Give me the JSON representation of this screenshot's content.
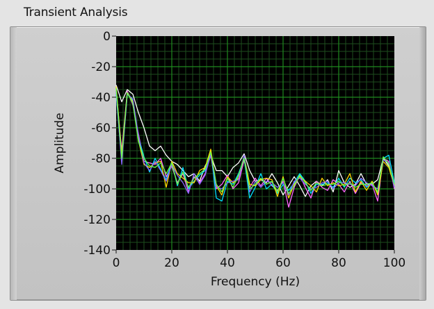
{
  "window": {
    "title": "Transient Analysis"
  },
  "chart_data": {
    "type": "line",
    "title": "Transient Analysis",
    "xlabel": "Frequency (Hz)",
    "ylabel": "Amplitude",
    "xlim": [
      0,
      100
    ],
    "ylim": [
      -140,
      0
    ],
    "x_ticks": [
      0,
      20,
      40,
      60,
      80,
      100
    ],
    "y_ticks": [
      0,
      -20,
      -40,
      -60,
      -80,
      -100,
      -120,
      -140
    ],
    "grid": true,
    "legend": "none",
    "background_color": "#000000",
    "major_grid_color": "#1f8a1f",
    "minor_grid_color": "#1e4e1e",
    "x": [
      0,
      2,
      4,
      6,
      8,
      10,
      12,
      14,
      16,
      18,
      20,
      22,
      24,
      26,
      28,
      30,
      32,
      34,
      36,
      38,
      40,
      42,
      44,
      46,
      48,
      50,
      52,
      54,
      56,
      58,
      60,
      62,
      64,
      66,
      68,
      70,
      72,
      74,
      76,
      78,
      80,
      82,
      84,
      86,
      88,
      90,
      92,
      94,
      96,
      98,
      100
    ],
    "series": [
      {
        "color": "#ffffff",
        "values": [
          -32,
          -43,
          -35,
          -38,
          -50,
          -60,
          -72,
          -75,
          -72,
          -78,
          -82,
          -84,
          -88,
          -92,
          -90,
          -95,
          -85,
          -78,
          -88,
          -88,
          -92,
          -86,
          -83,
          -77,
          -88,
          -95,
          -94,
          -96,
          -90,
          -96,
          -104,
          -98,
          -92,
          -98,
          -105,
          -98,
          -95,
          -98,
          -94,
          -102,
          -88,
          -96,
          -99,
          -97,
          -90,
          -97,
          -97,
          -94,
          -80,
          -85,
          -98
        ]
      },
      {
        "color": "#ff66ff",
        "values": [
          -35,
          -75,
          -36,
          -45,
          -64,
          -82,
          -83,
          -84,
          -80,
          -92,
          -85,
          -96,
          -90,
          -102,
          -92,
          -96,
          -90,
          -78,
          -100,
          -97,
          -91,
          -100,
          -96,
          -81,
          -99,
          -93,
          -98,
          -93,
          -98,
          -101,
          -95,
          -112,
          -99,
          -91,
          -99,
          -106,
          -95,
          -99,
          -101,
          -94,
          -97,
          -102,
          -95,
          -103,
          -96,
          -98,
          -97,
          -108,
          -80,
          -82,
          -100
        ]
      },
      {
        "color": "#00e0ff",
        "values": [
          -38,
          -82,
          -38,
          -42,
          -66,
          -79,
          -89,
          -80,
          -87,
          -94,
          -82,
          -98,
          -86,
          -100,
          -95,
          -91,
          -88,
          -75,
          -106,
          -108,
          -95,
          -97,
          -90,
          -80,
          -106,
          -99,
          -90,
          -100,
          -97,
          -103,
          -97,
          -101,
          -96,
          -90,
          -95,
          -103,
          -97,
          -97,
          -96,
          -99,
          -93,
          -99,
          -93,
          -96,
          -94,
          -99,
          -96,
          -103,
          -80,
          -78,
          -96
        ]
      },
      {
        "color": "#ffd700",
        "values": [
          -33,
          -78,
          -37,
          -43,
          -68,
          -84,
          -86,
          -83,
          -82,
          -99,
          -82,
          -90,
          -93,
          -96,
          -96,
          -88,
          -86,
          -74,
          -98,
          -104,
          -92,
          -96,
          -93,
          -79,
          -97,
          -98,
          -94,
          -93,
          -94,
          -105,
          -92,
          -106,
          -97,
          -92,
          -95,
          -98,
          -102,
          -93,
          -98,
          -96,
          -98,
          -97,
          -90,
          -102,
          -95,
          -101,
          -95,
          -104,
          -82,
          -86,
          -98
        ]
      },
      {
        "color": "#8866ff",
        "values": [
          -36,
          -84,
          -38,
          -41,
          -65,
          -83,
          -88,
          -82,
          -88,
          -95,
          -84,
          -91,
          -96,
          -103,
          -90,
          -97,
          -91,
          -77,
          -99,
          -100,
          -96,
          -95,
          -94,
          -78,
          -102,
          -95,
          -99,
          -95,
          -96,
          -99,
          -96,
          -104,
          -95,
          -93,
          -97,
          -100,
          -99,
          -96,
          -95,
          -100,
          -96,
          -96,
          -97,
          -98,
          -93,
          -96,
          -98,
          -100,
          -81,
          -83,
          -99
        ]
      },
      {
        "color": "#66ff44",
        "values": [
          -34,
          -80,
          -37,
          -44,
          -69,
          -80,
          -85,
          -86,
          -83,
          -90,
          -83,
          -97,
          -89,
          -99,
          -93,
          -90,
          -87,
          -76,
          -97,
          -102,
          -93,
          -99,
          -91,
          -80,
          -100,
          -97,
          -93,
          -97,
          -95,
          -102,
          -93,
          -103,
          -98,
          -91,
          -96,
          -101,
          -96,
          -98,
          -97,
          -97,
          -95,
          -98,
          -96,
          -99,
          -97,
          -97,
          -96,
          -102,
          -79,
          -84,
          -97
        ]
      }
    ]
  }
}
